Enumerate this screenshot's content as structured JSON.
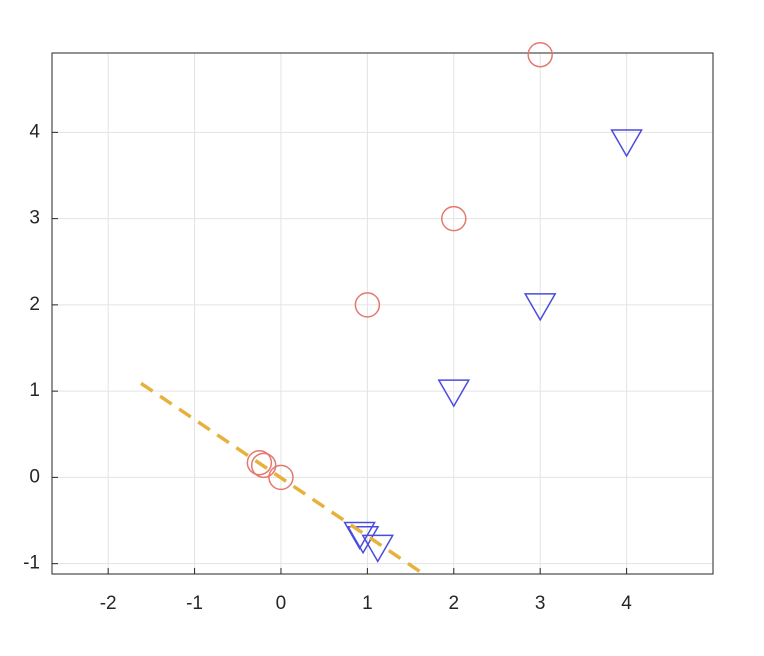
{
  "chart_data": {
    "type": "scatter",
    "series": [
      {
        "color": "#e3796f",
        "marker": "circle",
        "x": [
          3,
          2,
          1,
          -0.25,
          -0.2,
          0
        ],
        "values": [
          4.9,
          3,
          2,
          0.17,
          0.14,
          0
        ]
      },
      {
        "color": "#4b4be0",
        "marker": "triangle-down",
        "x": [
          4,
          3,
          2,
          0.91,
          0.95,
          1.12
        ],
        "values": [
          3.9,
          2,
          1,
          -0.65,
          -0.7,
          -0.8
        ]
      },
      {
        "color": "#e6b23c",
        "marker": "none",
        "linestyle": "dashed",
        "x": [
          -1.62,
          1.65
        ],
        "values": [
          1.09,
          -1.12
        ]
      }
    ],
    "xlim": [
      -2.65,
      5
    ],
    "ylim": [
      -1.12,
      4.92
    ],
    "xticks": [
      -2,
      -1,
      0,
      1,
      2,
      3,
      4
    ],
    "yticks": [
      -1,
      0,
      1,
      2,
      3,
      4
    ],
    "grid": true
  }
}
